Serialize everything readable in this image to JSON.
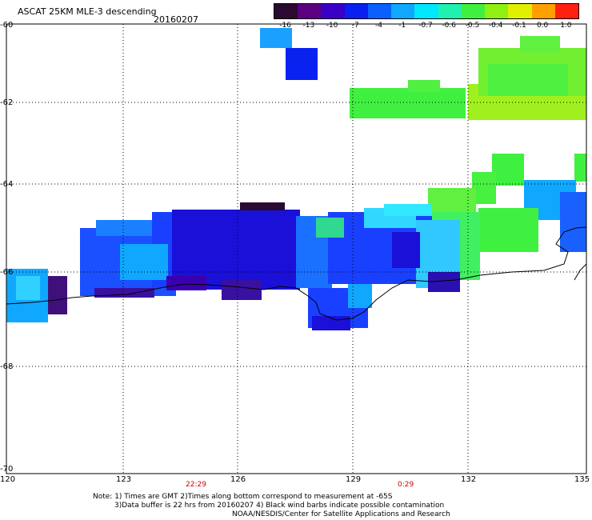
{
  "header": {
    "title": "ASCAT 25KM MLE-3 descending",
    "date": "20160207"
  },
  "colorbar": {
    "labels": [
      "-16",
      "-13",
      "-10",
      "-7",
      "-4",
      "-1",
      "-0.7",
      "-0.6",
      "-0.5",
      "-0.4",
      "-0.1",
      "0.0",
      "1.0"
    ],
    "colors": [
      "#2a0a30",
      "#5a0080",
      "#3a00c8",
      "#0a20f0",
      "#0a60ff",
      "#10a8ff",
      "#00e8ff",
      "#20f0b0",
      "#40f040",
      "#90f010",
      "#e0f000",
      "#ffa000",
      "#ff2010"
    ]
  },
  "axes": {
    "lat_labels": [
      "-60",
      "-62",
      "-64",
      "-66",
      "-68",
      "-70"
    ],
    "lon_labels": [
      "120",
      "123",
      "126",
      "129",
      "132",
      "135"
    ],
    "time_labels": [
      "22:29",
      "0:29"
    ]
  },
  "notes": {
    "line1": "Note: 1) Times are GMT 2)Times along bottom correspond to measurement at -65S",
    "line2": "3)Data buffer is 22 hrs from 20160207 4) Black wind barbs indicate possible contamination",
    "line3": "NOAA/NESDIS/Center for Satellite Applications and Research"
  },
  "map_colors": {
    "deep_blue": "#1a10d8",
    "blue": "#1e40ff",
    "light_blue": "#18a0ff",
    "cyan": "#30d8ff",
    "green": "#40f040",
    "yellow_green": "#b0f020",
    "purple": "#40107a",
    "coast": "#000000"
  }
}
